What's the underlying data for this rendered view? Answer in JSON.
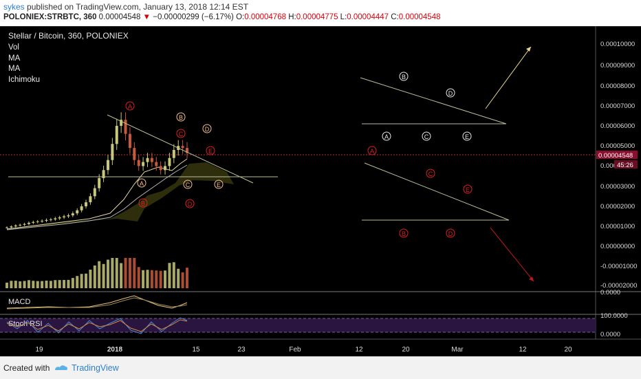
{
  "header": {
    "user": "sykes",
    "published": "published on TradingView.com, January 13, 2018 12:14 EST",
    "symbol": "POLONIEX:STRBTC, 360",
    "last": "0.00004548",
    "change": "−0.00000299 (−6.17%)",
    "o_label": "O:",
    "o_value": "0.00004768",
    "h_label": "H:",
    "h_value": "0.00004775",
    "l_label": "L:",
    "l_value": "0.00004447",
    "c_label": "C:",
    "c_value": "0.00004548"
  },
  "legend": {
    "title": "Stellar / Bitcoin, 360, POLONIEX",
    "items": [
      "Vol",
      "MA",
      "MA",
      "Ichimoku"
    ]
  },
  "price_axis": {
    "ticks": [
      "0.00010000",
      "0.00009000",
      "0.00008000",
      "0.00007000",
      "0.00006000",
      "0.00005000",
      "0.00004000",
      "0.00003000",
      "0.00002000",
      "0.00001000",
      "0.00000000",
      "-0.00001000",
      "-0.00002000"
    ],
    "current_price": "0.00004548",
    "countdown": "45:26"
  },
  "indicators": {
    "macd_label": "MACD",
    "macd_tick": "0.0000",
    "rsi_label": "Stoch RSI",
    "rsi_ticks": [
      "100.0000",
      "0.0000"
    ]
  },
  "time_axis": [
    "19",
    "2018",
    "15",
    "23",
    "Feb",
    "12",
    "20",
    "Mar",
    "12",
    "20"
  ],
  "wave_labels": {
    "A": "A",
    "B": "B",
    "C": "C",
    "D": "D",
    "E": "E"
  },
  "colors": {
    "background": "#000000",
    "candle_up": "#c8c87a",
    "candle_down": "#c85a3c",
    "yellow_label": "#f0e6b4",
    "red_label": "#e02020",
    "orange_label": "#f5c08a",
    "trendline": "#bdbd9a",
    "arrow_up": "#e8d68a",
    "arrow_down": "#c01818",
    "current_price_tag": "#8b0f2c",
    "rsi_band": "#2a1540"
  },
  "chart_data": {
    "type": "candlestick",
    "title": "Stellar / Bitcoin, 360, POLONIEX",
    "xlabel": "",
    "ylabel": "",
    "ylim": [
      -2.5e-05,
      0.000105
    ],
    "x_ticks": [
      "19",
      "2018",
      "15",
      "23",
      "Feb",
      "12",
      "20",
      "Mar",
      "12",
      "20"
    ],
    "series": [
      {
        "name": "price",
        "values": [
          8.5e-06,
          9e-06,
          9.5e-06,
          9.8e-06,
          1.02e-05,
          1.08e-05,
          1.12e-05,
          1.15e-05,
          1.18e-05,
          1.22e-05,
          1.25e-05,
          1.3e-05,
          1.35e-05,
          1.4e-05,
          1.45e-05,
          1.55e-05,
          1.7e-05,
          1.9e-05,
          2.1e-05,
          2.4e-05,
          2.8e-05,
          3.3e-05,
          3.7e-05,
          4.2e-05,
          5e-05,
          5.9e-05,
          6.2e-05,
          5.5e-05,
          4.8e-05,
          4.2e-05,
          3.9e-05,
          4.1e-05,
          4.3e-05,
          4.1e-05,
          3.9e-05,
          3.7e-05,
          3.9e-05,
          4.3e-05,
          4.7e-05,
          4.9e-05,
          4.8e-05,
          4.55e-05
        ]
      }
    ],
    "current_value": 4.548e-05
  }
}
